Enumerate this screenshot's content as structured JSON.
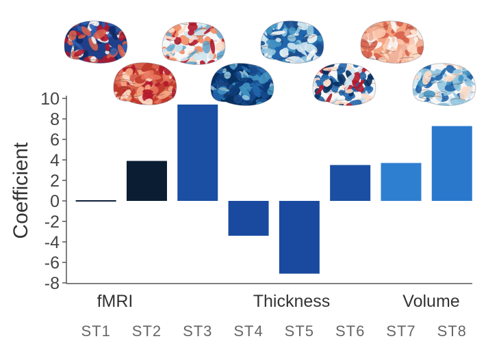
{
  "chart_data": {
    "type": "bar",
    "title": "",
    "xlabel": "",
    "ylabel": "Coefficient",
    "ylim": [
      -8,
      10
    ],
    "yticks": [
      -8,
      -6,
      -4,
      -2,
      0,
      2,
      4,
      6,
      8,
      10
    ],
    "grid": false,
    "categories": [
      "ST1",
      "ST2",
      "ST3",
      "ST4",
      "ST5",
      "ST6",
      "ST7",
      "ST8"
    ],
    "values": [
      0.1,
      3.9,
      9.4,
      -3.4,
      -7.1,
      3.5,
      3.7,
      7.3
    ],
    "bar_colors": [
      "#0b1d33",
      "#0b1d33",
      "#1a4fa3",
      "#1a4aa0",
      "#1a4aa0",
      "#1a4fa3",
      "#2f7fd1",
      "#2a78cc"
    ],
    "groups": [
      {
        "label": "fMRI",
        "categories": [
          "ST1",
          "ST2",
          "ST3"
        ]
      },
      {
        "label": "Thickness",
        "categories": [
          "ST4",
          "ST5",
          "ST6"
        ]
      },
      {
        "label": "Volume",
        "categories": [
          "ST7",
          "ST8"
        ]
      }
    ],
    "brain_maps": [
      {
        "category": "ST1",
        "palette": "noisy-red-blue"
      },
      {
        "category": "ST2",
        "palette": "red-white-blue"
      },
      {
        "category": "ST3",
        "palette": "mostly-blue"
      },
      {
        "category": "ST4",
        "palette": "light-red"
      },
      {
        "category": "ST5",
        "palette": "mostly-red"
      },
      {
        "category": "ST6",
        "palette": "dark-blue"
      },
      {
        "category": "ST7",
        "palette": "blue-white-red"
      },
      {
        "category": "ST8",
        "palette": "white-blue"
      }
    ]
  }
}
